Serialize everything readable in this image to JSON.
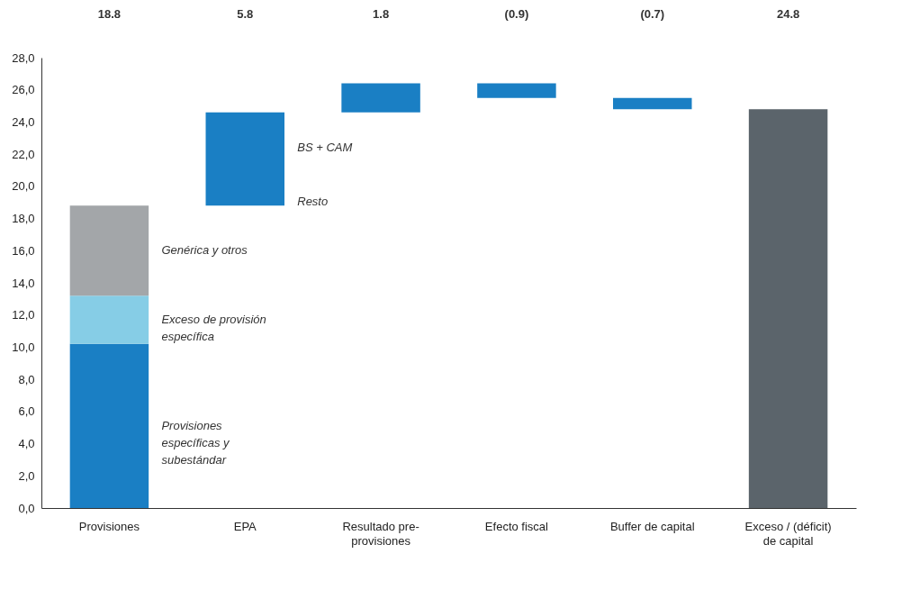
{
  "chart_data": {
    "type": "bar",
    "categories": [
      "Provisiones",
      "EPA",
      "Resultado pre-\nprovisiones",
      "Efecto fiscal",
      "Buffer de capital",
      "Exceso / (déficit)\nde capital"
    ],
    "series": [
      {
        "name": "Provisiones\nespecíficas y\nsubestándar",
        "color": "#1a7fc4",
        "values": [
          10.2,
          5.8,
          1.8,
          -0.9,
          -0.7,
          null
        ],
        "base": [
          0,
          18.8,
          24.6,
          26.4,
          25.5,
          null
        ]
      },
      {
        "name": "Exceso de provisión\nespecífica",
        "color": "#86cde6",
        "values": [
          3.0,
          null,
          null,
          null,
          null,
          null
        ],
        "base": [
          10.2,
          null,
          null,
          null,
          null,
          null
        ]
      },
      {
        "name": "Genérica y otros",
        "color": "#a3a6a9",
        "values": [
          5.6,
          null,
          null,
          null,
          null,
          null
        ],
        "base": [
          13.2,
          null,
          null,
          null,
          null,
          null
        ]
      },
      {
        "color": "#5b646b",
        "values": [
          null,
          null,
          null,
          null,
          null,
          24.8
        ],
        "base": [
          null,
          null,
          null,
          null,
          null,
          0
        ]
      }
    ],
    "value_labels": [
      "18.8",
      "5.8",
      "1.8",
      "(0.9)",
      "(0.7)",
      "24.8"
    ],
    "ylim": [
      0,
      28
    ],
    "yticks": [
      {
        "value": 0,
        "label": "0,0"
      },
      {
        "value": 2,
        "label": "2,0"
      },
      {
        "value": 4,
        "label": "4,0"
      },
      {
        "value": 6,
        "label": "6,0"
      },
      {
        "value": 8,
        "label": "8,0"
      },
      {
        "value": 10,
        "label": "10,0"
      },
      {
        "value": 12,
        "label": "12,0"
      },
      {
        "value": 14,
        "label": "14,0"
      },
      {
        "value": 16,
        "label": "16,0"
      },
      {
        "value": 18,
        "label": "18,0"
      },
      {
        "value": 20,
        "label": "20,0"
      },
      {
        "value": 22,
        "label": "22,0"
      },
      {
        "value": 24,
        "label": "24,0"
      },
      {
        "value": 26,
        "label": "26,0"
      },
      {
        "value": 28,
        "label": "28,0"
      }
    ],
    "grid": false,
    "annotations": [
      "BS + CAM",
      "Resto"
    ]
  }
}
